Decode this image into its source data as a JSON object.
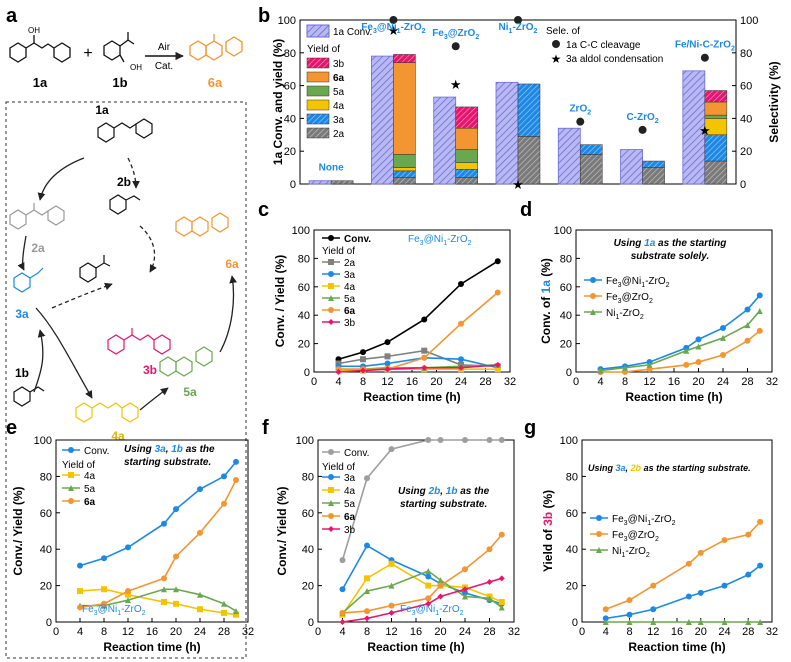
{
  "panel_labels": {
    "a": "a",
    "b": "b",
    "c": "c",
    "d": "d",
    "e": "e",
    "f": "f",
    "g": "g"
  },
  "scheme": {
    "reactant_1": "1a",
    "reactant_2": "1b",
    "conditions_top": "Air",
    "conditions_bottom": "Cat.",
    "product": "6a",
    "plus": "+",
    "mechanism_labels": [
      "1a",
      "2a",
      "2b",
      "3a",
      "3b",
      "6a",
      "1b",
      "4a",
      "5a"
    ],
    "oh_label": "OH"
  },
  "colors": {
    "conv": "#000000",
    "2a": "#808080",
    "3a": "#1e88e5",
    "4a": "#f5c400",
    "5a": "#6aa84f",
    "6a": "#f39530",
    "3b": "#e6166e",
    "grey_conv": "#9e9e9e",
    "title_blue": "#1e88e5",
    "bar_conv": "#aaaaee"
  },
  "chart_data": [
    {
      "panel": "b",
      "type": "bar",
      "categories": [
        "None",
        "Fe3@Ni1-ZrO2",
        "Fe3@ZrO2",
        "Ni1-ZrO2",
        "ZrO2",
        "C-ZrO2",
        "Fe/Ni-C-ZrO2"
      ],
      "category_labels": [
        {
          "main": "None"
        },
        {
          "p1": "Fe",
          "s1": "3",
          "p2": "@Ni",
          "s2": "1",
          "p3": "-ZrO",
          "s3": "2"
        },
        {
          "p1": "Fe",
          "s1": "3",
          "p2": "@ZrO",
          "s2": "2"
        },
        {
          "p1": "Ni",
          "s1": "1",
          "p2": "-ZrO",
          "s2": "2"
        },
        {
          "p1": "ZrO",
          "s1": "2"
        },
        {
          "main": "C-ZrO",
          "sub": "2"
        },
        {
          "main": "Fe/Ni-C-ZrO",
          "sub": "2"
        }
      ],
      "conversion": [
        2,
        78,
        53,
        62,
        34,
        21,
        69
      ],
      "yield_stack_order": [
        "2a",
        "3a",
        "4a",
        "5a",
        "6a",
        "3b"
      ],
      "yields": {
        "2a": [
          2,
          4,
          4,
          29,
          18,
          10,
          14
        ],
        "3a": [
          0,
          4,
          5,
          32,
          6,
          4,
          16
        ],
        "4a": [
          0,
          2,
          4,
          0,
          0,
          0,
          10
        ],
        "5a": [
          0,
          8,
          8,
          0,
          0,
          0,
          2
        ],
        "6a": [
          0,
          56,
          13,
          0,
          0,
          0,
          8
        ],
        "3b": [
          0,
          5,
          13,
          0,
          0,
          0,
          7
        ]
      },
      "selectivity_cc_cleavage": [
        null,
        100,
        84,
        100,
        38,
        33,
        77
      ],
      "selectivity_aldol": [
        null,
        94,
        61,
        0,
        null,
        null,
        33
      ],
      "ylabel_left": "1a Conv. and yield (%)",
      "ylabel_right": "Selectivity (%)",
      "ylim": [
        0,
        100
      ],
      "yticks": [
        "0",
        "20",
        "40",
        "60",
        "80",
        "100"
      ],
      "legend": {
        "conv": "1a Conv.",
        "yield_of": "Yield of",
        "items": [
          "3b",
          "6a",
          "5a",
          "4a",
          "3a",
          "2a"
        ],
        "sele_of": "Sele. of",
        "cc": "1a C-C cleavage",
        "aldol": "3a aldol condensation"
      }
    },
    {
      "panel": "c",
      "type": "line",
      "x": [
        4,
        8,
        12,
        18,
        24,
        30
      ],
      "series": [
        {
          "name": "Conv.",
          "key": "conv",
          "values": [
            9,
            14,
            21,
            37,
            62,
            78
          ]
        },
        {
          "name": "2a",
          "key": "2a",
          "values": [
            6,
            9,
            11,
            15,
            5,
            4
          ]
        },
        {
          "name": "3a",
          "key": "3a",
          "values": [
            4,
            4,
            6,
            10,
            9,
            3
          ]
        },
        {
          "name": "4a",
          "key": "4a",
          "values": [
            1,
            1,
            2,
            2,
            2,
            2
          ]
        },
        {
          "name": "5a",
          "key": "5a",
          "values": [
            2,
            2,
            3,
            3,
            4,
            5
          ]
        },
        {
          "name": "6a",
          "key": "6a",
          "values": [
            2,
            2,
            2,
            10,
            34,
            56
          ]
        },
        {
          "name": "3b",
          "key": "3b",
          "values": [
            0,
            1,
            2,
            3,
            3,
            5
          ]
        }
      ],
      "ylabel": "Conv. / Yield (%)",
      "xlabel": "Reaction time (h)",
      "xlim": [
        0,
        32
      ],
      "ylim": [
        0,
        100
      ],
      "xticks": [
        "0",
        "4",
        "8",
        "12",
        "16",
        "20",
        "24",
        "28",
        "32"
      ],
      "yticks": [
        "0",
        "20",
        "40",
        "60",
        "80",
        "100"
      ],
      "legend_title": "Yield of",
      "title_parts": {
        "p1": "Fe",
        "s1": "3",
        "p2": "@Ni",
        "s2": "1",
        "p3": "-ZrO",
        "s3": "2"
      }
    },
    {
      "panel": "d",
      "type": "line",
      "x": [
        4,
        8,
        12,
        18,
        20,
        24,
        28,
        30
      ],
      "series": [
        {
          "name": "Fe3@Ni1-ZrO2",
          "key": "3a",
          "values": [
            2,
            4,
            7,
            17,
            23,
            31,
            44,
            54
          ],
          "label_parts": {
            "p1": "Fe",
            "s1": "3",
            "p2": "@Ni",
            "s2": "1",
            "p3": "-ZrO",
            "s3": "2"
          }
        },
        {
          "name": "Fe3@ZrO2",
          "key": "6a",
          "values": [
            0,
            0,
            2,
            5,
            7,
            12,
            22,
            29
          ],
          "label_parts": {
            "p1": "Fe",
            "s1": "3",
            "p2": "@ZrO",
            "s2": "2"
          }
        },
        {
          "name": "Ni1-ZrO2",
          "key": "5a",
          "values": [
            1,
            3,
            5,
            15,
            18,
            24,
            33,
            43
          ],
          "label_parts": {
            "p1": "Ni",
            "s1": "1",
            "p2": "-ZrO",
            "s2": "2"
          }
        }
      ],
      "ylabel_prefix": "Conv. of ",
      "ylabel_em": "1a",
      "ylabel_suffix": " (%)",
      "xlabel": "Reaction time (h)",
      "xlim": [
        0,
        32
      ],
      "ylim": [
        0,
        100
      ],
      "xticks": [
        "0",
        "4",
        "8",
        "12",
        "16",
        "20",
        "24",
        "28",
        "32"
      ],
      "yticks": [
        "0",
        "20",
        "40",
        "60",
        "80",
        "100"
      ],
      "note_line1_a": "Using ",
      "note_line1_b": "1a",
      "note_line1_c": " as the starting",
      "note_line2": "substrate solely."
    },
    {
      "panel": "e",
      "type": "line",
      "x": [
        4,
        8,
        12,
        18,
        20,
        24,
        28,
        30
      ],
      "series": [
        {
          "name": "Conv.",
          "key": "3a",
          "values": [
            31,
            35,
            41,
            54,
            62,
            73,
            80,
            88
          ]
        },
        {
          "name": "4a",
          "key": "4a",
          "values": [
            17,
            18,
            15,
            11,
            10,
            7,
            5,
            4
          ]
        },
        {
          "name": "5a",
          "key": "5a",
          "values": [
            9,
            9,
            12,
            18,
            18,
            15,
            10,
            6
          ]
        },
        {
          "name": "6a",
          "key": "6a",
          "values": [
            8,
            10,
            17,
            24,
            36,
            49,
            65,
            78
          ]
        }
      ],
      "ylabel": "Conv./ Yield (%)",
      "xlabel": "Reaction time (h)",
      "xlim": [
        0,
        32
      ],
      "ylim": [
        0,
        100
      ],
      "xticks": [
        "0",
        "4",
        "8",
        "12",
        "16",
        "20",
        "24",
        "28",
        "32"
      ],
      "yticks": [
        "0",
        "20",
        "40",
        "60",
        "80",
        "100"
      ],
      "legend_title": "Yield of",
      "note_a": "Using ",
      "note_b": "3a",
      "note_c": ", ",
      "note_d": "1b",
      "note_e": " as the",
      "note_line2": "starting substrate.",
      "catalyst_parts": {
        "p1": "Fe",
        "s1": "3",
        "p2": "@Ni",
        "s2": "1",
        "p3": "-ZrO",
        "s3": "2"
      }
    },
    {
      "panel": "f",
      "type": "line",
      "x": [
        4,
        8,
        12,
        18,
        20,
        24,
        28,
        30
      ],
      "series": [
        {
          "name": "Conv.",
          "key": "grey_conv",
          "values": [
            34,
            79,
            95,
            100,
            100,
            100,
            100,
            100
          ]
        },
        {
          "name": "3a",
          "key": "3a",
          "values": [
            18,
            42,
            34,
            25,
            21,
            16,
            12,
            10
          ]
        },
        {
          "name": "4a",
          "key": "4a",
          "values": [
            4,
            24,
            32,
            20,
            20,
            19,
            14,
            11
          ]
        },
        {
          "name": "5a",
          "key": "5a",
          "values": [
            5,
            17,
            20,
            28,
            23,
            14,
            13,
            8
          ]
        },
        {
          "name": "6a",
          "key": "6a",
          "values": [
            5,
            6,
            9,
            13,
            20,
            29,
            40,
            48
          ]
        },
        {
          "name": "3b",
          "key": "3b",
          "values": [
            0,
            2,
            5,
            10,
            14,
            18,
            22,
            24
          ]
        }
      ],
      "ylabel": "Conv./ Yield (%)",
      "xlabel": "Reaction time (h)",
      "xlim": [
        0,
        32
      ],
      "ylim": [
        0,
        100
      ],
      "xticks": [
        "0",
        "4",
        "8",
        "12",
        "16",
        "20",
        "24",
        "28",
        "32"
      ],
      "yticks": [
        "0",
        "20",
        "40",
        "60",
        "80",
        "100"
      ],
      "legend_title": "Yield of",
      "note_a": "Using ",
      "note_b": "2b",
      "note_c": ", ",
      "note_d": "1b",
      "note_e": " as the",
      "note_line2": "starting substrate.",
      "catalyst_parts": {
        "p1": "Fe",
        "s1": "3",
        "p2": "@Ni",
        "s2": "1",
        "p3": "-ZrO",
        "s3": "2"
      }
    },
    {
      "panel": "g",
      "type": "line",
      "x": [
        4,
        8,
        12,
        18,
        20,
        24,
        28,
        30
      ],
      "series": [
        {
          "name": "Fe3@Ni1-ZrO2",
          "key": "3a",
          "values": [
            2,
            4,
            7,
            14,
            16,
            20,
            26,
            31
          ],
          "label_parts": {
            "p1": "Fe",
            "s1": "3",
            "p2": "@Ni",
            "s2": "1",
            "p3": "-ZrO",
            "s3": "2"
          }
        },
        {
          "name": "Fe3@ZrO2",
          "key": "6a",
          "values": [
            7,
            12,
            20,
            32,
            38,
            45,
            48,
            55
          ],
          "label_parts": {
            "p1": "Fe",
            "s1": "3",
            "p2": "@ZrO",
            "s2": "2"
          }
        },
        {
          "name": "Ni1-ZrO2",
          "key": "5a",
          "values": [
            0,
            0,
            0,
            0,
            0,
            0,
            0,
            0
          ],
          "label_parts": {
            "p1": "Ni",
            "s1": "1",
            "p2": "-ZrO",
            "s2": "2"
          }
        }
      ],
      "ylabel_prefix": "Yield of ",
      "ylabel_em": "3b",
      "ylabel_suffix": " (%)",
      "xlabel": "Reaction time (h)",
      "xlim": [
        0,
        32
      ],
      "ylim": [
        0,
        100
      ],
      "xticks": [
        "0",
        "4",
        "8",
        "12",
        "16",
        "20",
        "24",
        "28",
        "32"
      ],
      "yticks": [
        "0",
        "20",
        "40",
        "60",
        "80",
        "100"
      ],
      "note_a": "Using ",
      "note_b": "3a",
      "note_c": ", ",
      "note_d": "2b",
      "note_e": " as the starting substrate."
    }
  ]
}
